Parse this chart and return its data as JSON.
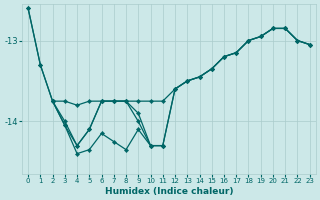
{
  "xlabel": "Humidex (Indice chaleur)",
  "bg_color": "#cce8e8",
  "line_color": "#006666",
  "grid_color": "#aacccc",
  "xlim": [
    -0.5,
    23.5
  ],
  "ylim": [
    -14.65,
    -12.55
  ],
  "yticks": [
    -14,
    -13
  ],
  "xticks": [
    0,
    1,
    2,
    3,
    4,
    5,
    6,
    7,
    8,
    9,
    10,
    11,
    12,
    13,
    14,
    15,
    16,
    17,
    18,
    19,
    20,
    21,
    22,
    23
  ],
  "series": [
    {
      "x": [
        0,
        1,
        2,
        3,
        4,
        5,
        6,
        7,
        8,
        9,
        10,
        11,
        12,
        13,
        14,
        15,
        16,
        17,
        18,
        19,
        20,
        21,
        22,
        23
      ],
      "y": [
        -12.6,
        -13.3,
        -13.75,
        -13.75,
        -13.8,
        -13.75,
        -13.75,
        -13.75,
        -13.75,
        -13.75,
        -13.75,
        -13.75,
        -13.6,
        -13.5,
        -13.45,
        -13.35,
        -13.2,
        -13.15,
        -13.0,
        -12.95,
        -12.85,
        -12.85,
        -13.0,
        -13.05
      ]
    },
    {
      "x": [
        0,
        1,
        2,
        3,
        4,
        5,
        6,
        7,
        8,
        9,
        10,
        11,
        12,
        13,
        14,
        15,
        16,
        17,
        18,
        19,
        20,
        21,
        22,
        23
      ],
      "y": [
        -12.6,
        -13.3,
        -13.75,
        -14.05,
        -14.3,
        -14.1,
        -13.75,
        -13.75,
        -13.75,
        -13.9,
        -14.3,
        -14.3,
        -13.6,
        -13.5,
        -13.45,
        -13.35,
        -13.2,
        -13.15,
        -13.0,
        -12.95,
        -12.85,
        -12.85,
        -13.0,
        -13.05
      ]
    },
    {
      "x": [
        2,
        3,
        4,
        5,
        6,
        7,
        8,
        9,
        10,
        11,
        12,
        13,
        14,
        15,
        16,
        17,
        18,
        19,
        20,
        21,
        22,
        23
      ],
      "y": [
        -13.75,
        -14.0,
        -14.3,
        -14.1,
        -13.75,
        -13.75,
        -13.75,
        -14.0,
        -14.3,
        -14.3,
        -13.6,
        -13.5,
        -13.45,
        -13.35,
        -13.2,
        -13.15,
        -13.0,
        -12.95,
        -12.85,
        -12.85,
        -13.0,
        -13.05
      ]
    },
    {
      "x": [
        2,
        3,
        4,
        5,
        6,
        7,
        8,
        9,
        10,
        11
      ],
      "y": [
        -13.75,
        -14.05,
        -14.4,
        -14.35,
        -14.15,
        -14.25,
        -14.35,
        -14.1,
        -14.3,
        -14.3
      ]
    }
  ]
}
